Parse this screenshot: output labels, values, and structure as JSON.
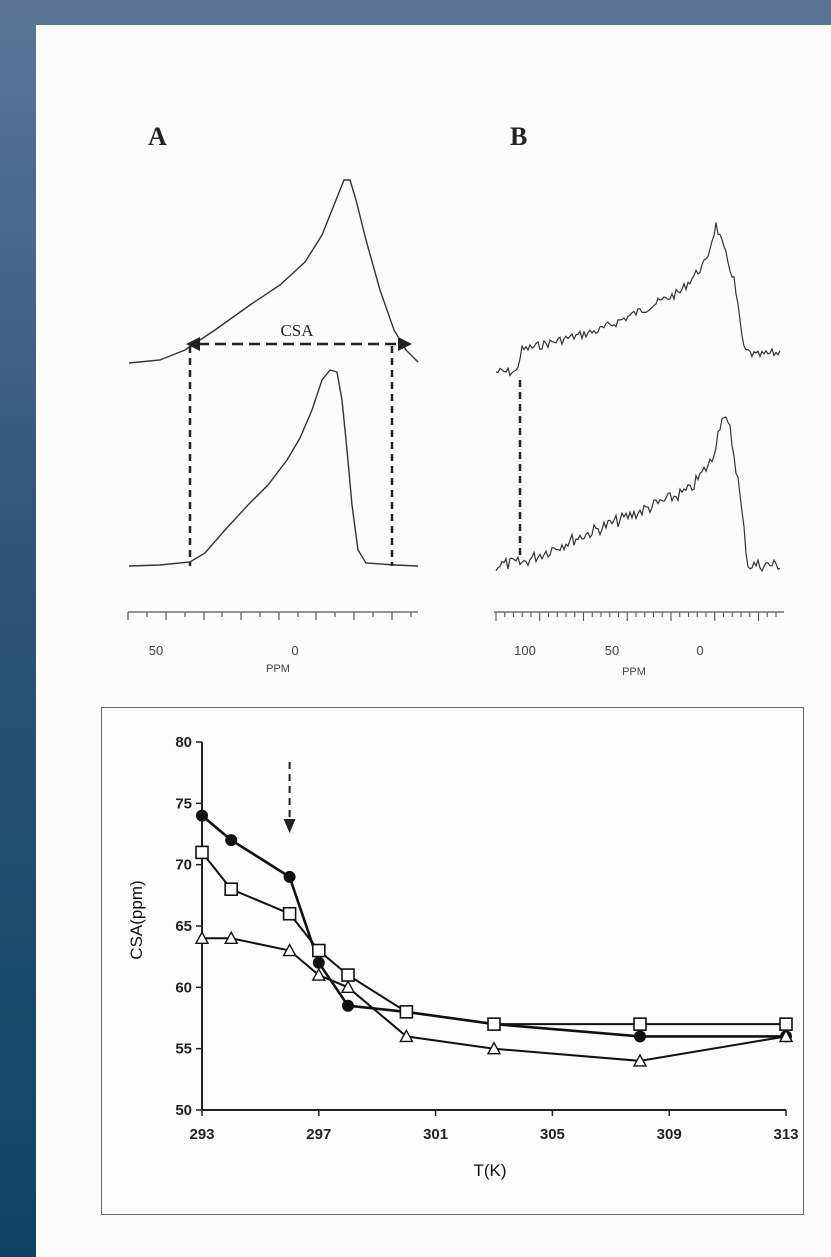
{
  "figure": {
    "panel_a_label": "A",
    "panel_b_label": "B",
    "csa_label": "CSA",
    "panel_a_axis": {
      "ticks": [
        "50",
        "0"
      ],
      "unit": "PPM"
    },
    "panel_b_axis": {
      "ticks": [
        "100",
        "50",
        "0"
      ],
      "unit": "PPM"
    }
  },
  "chart_data": {
    "type": "line",
    "title": "",
    "xlabel": "T(K)",
    "ylabel": "CSA(ppm)",
    "xlim": [
      293,
      313
    ],
    "ylim": [
      50,
      80
    ],
    "xticks": [
      293,
      297,
      301,
      305,
      309,
      313
    ],
    "yticks": [
      50,
      55,
      60,
      65,
      70,
      75,
      80
    ],
    "grid": false,
    "annotation": {
      "type": "dashed-arrow",
      "x": 296
    },
    "series": [
      {
        "marker": "filled-circle",
        "x": [
          293,
          294,
          296,
          297,
          298,
          300,
          303,
          308,
          313
        ],
        "y": [
          74,
          72,
          69,
          62,
          58.5,
          58,
          57,
          56,
          56
        ]
      },
      {
        "marker": "open-square",
        "x": [
          293,
          294,
          296,
          297,
          298,
          300,
          303,
          308,
          313
        ],
        "y": [
          71,
          68,
          66,
          63,
          61,
          58,
          57,
          57,
          57
        ]
      },
      {
        "marker": "open-triangle",
        "x": [
          293,
          294,
          296,
          297,
          298,
          300,
          303,
          308,
          313
        ],
        "y": [
          64,
          64,
          63,
          61,
          60,
          56,
          55,
          54,
          56
        ]
      }
    ]
  }
}
